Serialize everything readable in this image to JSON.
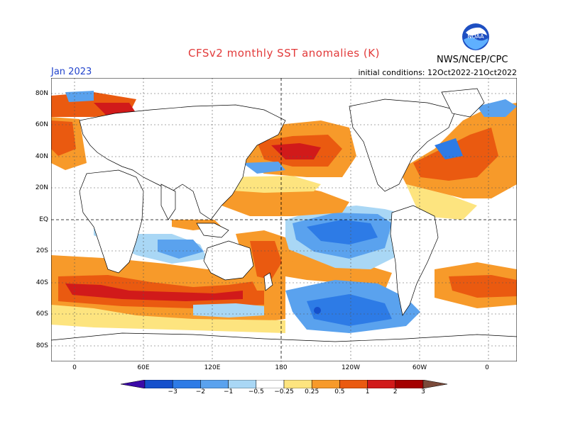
{
  "title": "CFSv2 monthly SST anomalies (K)",
  "month": "Jan 2023",
  "initial_conditions": "initial conditions: 12Oct2022-21Oct2022",
  "agency": "NWS/NCEP/CPC",
  "logo_text": "NOAA",
  "lat_labels": [
    "80N",
    "60N",
    "40N",
    "20N",
    "EQ",
    "20S",
    "40S",
    "60S",
    "80S"
  ],
  "lon_labels": [
    "0",
    "60E",
    "120E",
    "180",
    "120W",
    "60W",
    "0"
  ],
  "colorbar": {
    "labels": [
      "−3",
      "−2",
      "−1",
      "−0.5",
      "−0.25",
      "0.25",
      "0.5",
      "1",
      "2",
      "3"
    ],
    "colors": [
      "#3b0aa8",
      "#1550cc",
      "#2d7be6",
      "#5aa2ee",
      "#a9d7f5",
      "#ffffff",
      "#fde47f",
      "#f79a2a",
      "#ea5a10",
      "#d11a1a",
      "#a40000",
      "#7a4a3a"
    ]
  },
  "colors": {
    "title": "#e23a3a",
    "month": "#2244cc",
    "land": "#ffffff",
    "warm_light": "#fde47f",
    "warm_mid": "#f79a2a",
    "warm_strong": "#ea5a10",
    "warm_red": "#d11a1a",
    "cool_light": "#a9d7f5",
    "cool_mid": "#5aa2ee",
    "cool_strong": "#2d7be6"
  }
}
